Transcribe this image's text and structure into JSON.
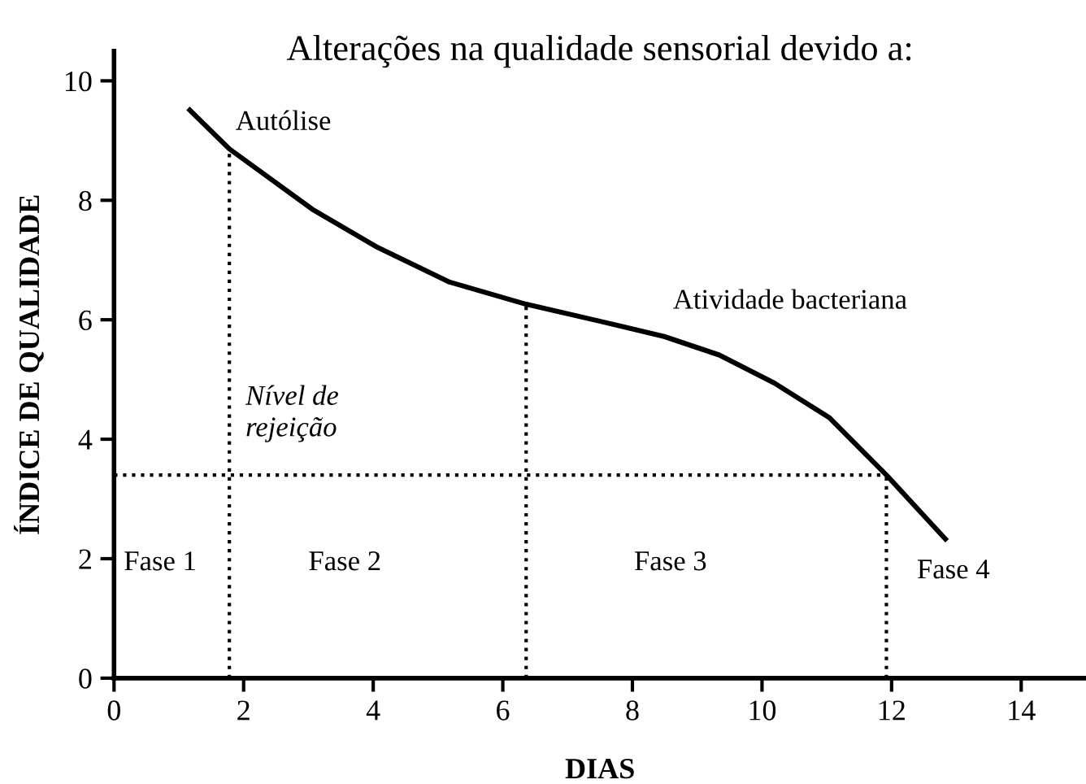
{
  "chart_data": {
    "type": "line",
    "title": "Alterações na qualidade sensorial devido a:",
    "xlabel": "DIAS",
    "ylabel": "ÍNDICE DE QUALIDADE",
    "x": [
      1.17,
      1.78,
      3.06,
      4.07,
      5.18,
      6.36,
      7.52,
      8.49,
      9.34,
      10.19,
      11.04,
      11.92,
      12.83
    ],
    "series": [
      {
        "color": "#000000",
        "values": [
          9.51,
          8.86,
          7.85,
          7.21,
          6.63,
          6.26,
          5.97,
          5.72,
          5.41,
          4.94,
          4.36,
          3.4,
          2.33
        ]
      }
    ],
    "xlim": [
      0,
      15
    ],
    "ylim": [
      0,
      10.5
    ],
    "xticks": [
      0,
      2,
      4,
      6,
      8,
      10,
      12,
      14
    ],
    "yticks": [
      0,
      2,
      4,
      6,
      8,
      10
    ],
    "grid": false,
    "legend": false,
    "marker": "none",
    "line_style": "solid",
    "ref_lines": [
      {
        "axis": "y",
        "value": 3.4,
        "label": "Nível de\nrejeição",
        "line_style": "dotted",
        "color": "#000000"
      },
      {
        "axis": "x",
        "value": 1.78,
        "line_style": "dotted",
        "color": "#000000"
      },
      {
        "axis": "x",
        "value": 6.36,
        "line_style": "dotted",
        "color": "#000000"
      },
      {
        "axis": "x",
        "value": 11.92,
        "line_style": "dotted",
        "color": "#000000"
      }
    ],
    "annotations": [
      "Autólise",
      "Atividade bacteriana",
      "Fase 1",
      "Fase 2",
      "Fase 3",
      "Fase 4"
    ]
  }
}
